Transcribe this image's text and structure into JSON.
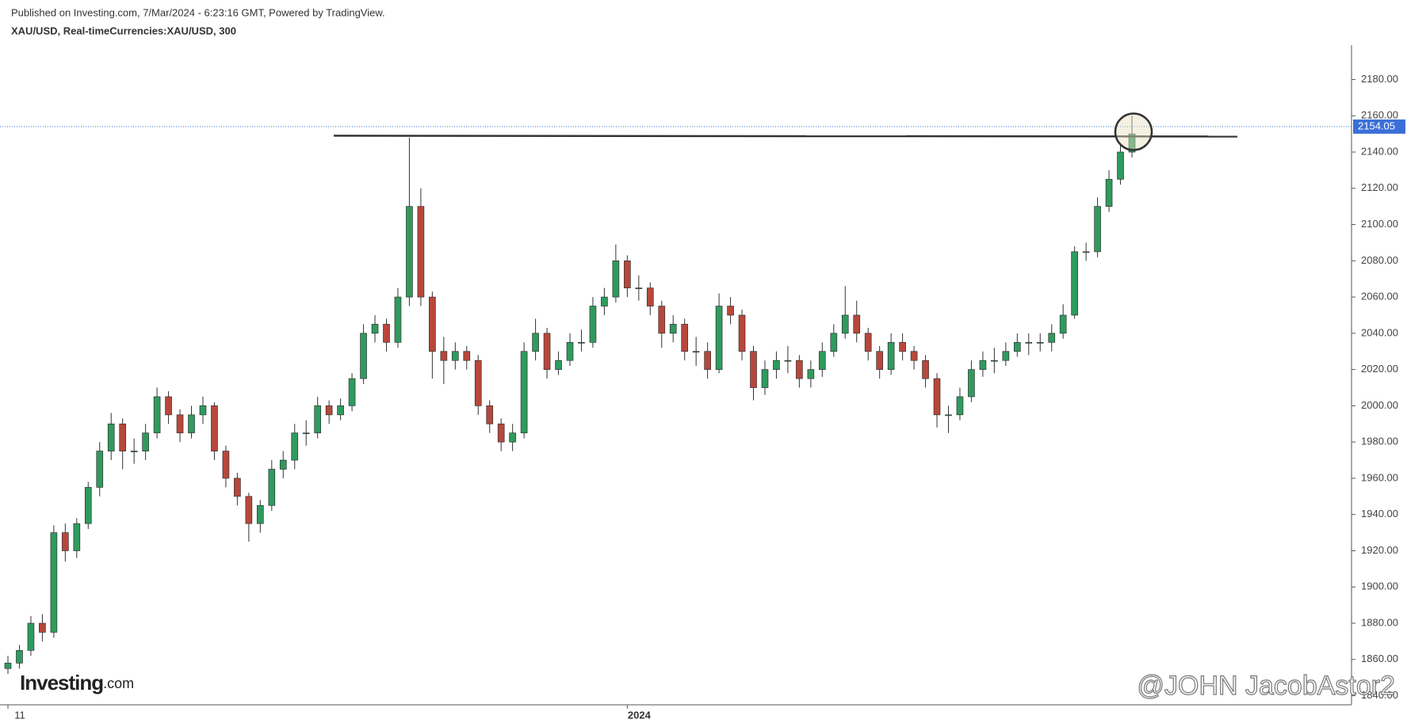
{
  "header": {
    "published": "Published on Investing.com, 7/Mar/2024 - 6:23:16 GMT, Powered by TradingView.",
    "symbol": "XAU/USD, Real-timeCurrencies:XAU/USD, 300"
  },
  "logo": {
    "brand": "Investing",
    "suffix": ".com"
  },
  "watermark": "@JOHN JacobAstor2",
  "chart_data": {
    "type": "candlestick",
    "up_color": "#2f9b5e",
    "down_color": "#b8473b",
    "open": [
      1855,
      1858,
      1865,
      1880,
      1875,
      1930,
      1920,
      1935,
      1955,
      1975,
      1990,
      1975,
      1975,
      1985,
      2005,
      1995,
      1985,
      1995,
      2000,
      1975,
      1960,
      1950,
      1935,
      1945,
      1965,
      1970,
      1985,
      1985,
      2000,
      1995,
      2000,
      2015,
      2040,
      2045,
      2035,
      2060,
      2110,
      2060,
      2030,
      2025,
      2030,
      2025,
      2000,
      1990,
      1980,
      1985,
      2030,
      2040,
      2020,
      2025,
      2035,
      2035,
      2055,
      2060,
      2080,
      2065,
      2065,
      2055,
      2040,
      2045,
      2030,
      2030,
      2020,
      2055,
      2050,
      2030,
      2010,
      2020,
      2025,
      2025,
      2015,
      2020,
      2030,
      2040,
      2050,
      2040,
      2030,
      2020,
      2035,
      2030,
      2025,
      2015,
      1995,
      1995,
      2005,
      2020,
      2025,
      2025,
      2030,
      2035,
      2035,
      2035,
      2040,
      2050,
      2085,
      2085,
      2110,
      2125,
      2140
    ],
    "high": [
      1862,
      1868,
      1884,
      1885,
      1934,
      1935,
      1938,
      1958,
      1980,
      1996,
      1993,
      1982,
      1990,
      2010,
      2008,
      1998,
      2000,
      2005,
      2002,
      1978,
      1963,
      1952,
      1948,
      1970,
      1975,
      1990,
      1992,
      2005,
      2003,
      2004,
      2018,
      2045,
      2050,
      2048,
      2065,
      2148,
      2120,
      2063,
      2038,
      2035,
      2033,
      2028,
      2003,
      1993,
      1990,
      2035,
      2048,
      2043,
      2030,
      2040,
      2042,
      2060,
      2065,
      2089,
      2083,
      2072,
      2068,
      2058,
      2050,
      2048,
      2038,
      2035,
      2062,
      2060,
      2053,
      2033,
      2025,
      2030,
      2033,
      2028,
      2025,
      2035,
      2045,
      2066,
      2058,
      2043,
      2033,
      2040,
      2040,
      2033,
      2028,
      2018,
      2000,
      2010,
      2025,
      2030,
      2032,
      2035,
      2040,
      2040,
      2040,
      2045,
      2056,
      2088,
      2090,
      2115,
      2130,
      2145,
      2160
    ],
    "low": [
      1852,
      1855,
      1862,
      1870,
      1872,
      1914,
      1916,
      1932,
      1950,
      1970,
      1965,
      1968,
      1970,
      1982,
      1990,
      1980,
      1982,
      1990,
      1970,
      1955,
      1945,
      1925,
      1930,
      1942,
      1960,
      1965,
      1978,
      1982,
      1990,
      1992,
      1997,
      2012,
      2035,
      2030,
      2032,
      2055,
      2055,
      2015,
      2012,
      2020,
      2020,
      1995,
      1985,
      1975,
      1975,
      1982,
      2025,
      2015,
      2017,
      2022,
      2030,
      2032,
      2050,
      2057,
      2060,
      2058,
      2050,
      2032,
      2035,
      2025,
      2022,
      2015,
      2018,
      2045,
      2025,
      2003,
      2006,
      2015,
      2018,
      2010,
      2010,
      2016,
      2027,
      2037,
      2035,
      2025,
      2015,
      2017,
      2025,
      2020,
      2010,
      1988,
      1985,
      1992,
      2002,
      2016,
      2018,
      2022,
      2027,
      2028,
      2030,
      2030,
      2037,
      2048,
      2080,
      2082,
      2107,
      2122,
      2137
    ],
    "close": [
      1858,
      1865,
      1880,
      1875,
      1930,
      1920,
      1935,
      1955,
      1975,
      1990,
      1975,
      1975,
      1985,
      2005,
      1995,
      1985,
      1995,
      2000,
      1975,
      1960,
      1950,
      1935,
      1945,
      1965,
      1970,
      1985,
      1985,
      2000,
      1995,
      2000,
      2015,
      2040,
      2045,
      2035,
      2060,
      2110,
      2060,
      2030,
      2025,
      2030,
      2025,
      2000,
      1990,
      1980,
      1985,
      2030,
      2040,
      2020,
      2025,
      2035,
      2035,
      2055,
      2060,
      2080,
      2065,
      2065,
      2055,
      2040,
      2045,
      2030,
      2030,
      2020,
      2055,
      2050,
      2030,
      2010,
      2020,
      2025,
      2025,
      2015,
      2020,
      2030,
      2040,
      2050,
      2040,
      2030,
      2020,
      2035,
      2030,
      2025,
      2015,
      1995,
      1995,
      2005,
      2020,
      2025,
      2025,
      2030,
      2035,
      2035,
      2035,
      2040,
      2050,
      2085,
      2085,
      2110,
      2125,
      2140,
      2150
    ],
    "xticks": [
      {
        "value": 0,
        "label": "11"
      },
      {
        "value": 54,
        "label": "2024"
      }
    ],
    "ylim": [
      1835,
      2199
    ],
    "yticks": [
      {
        "value": 1840,
        "label": "1840.00"
      },
      {
        "value": 1860,
        "label": "1860.00"
      },
      {
        "value": 1880,
        "label": "1880.00"
      },
      {
        "value": 1900,
        "label": "1900.00"
      },
      {
        "value": 1920,
        "label": "1920.00"
      },
      {
        "value": 1940,
        "label": "1940.00"
      },
      {
        "value": 1960,
        "label": "1960.00"
      },
      {
        "value": 1980,
        "label": "1980.00"
      },
      {
        "value": 2000,
        "label": "2000.00"
      },
      {
        "value": 2020,
        "label": "2020.00"
      },
      {
        "value": 2040,
        "label": "2040.00"
      },
      {
        "value": 2060,
        "label": "2060.00"
      },
      {
        "value": 2080,
        "label": "2080.00"
      },
      {
        "value": 2100,
        "label": "2100.00"
      },
      {
        "value": 2120,
        "label": "2120.00"
      },
      {
        "value": 2140,
        "label": "2140.00"
      },
      {
        "value": 2160,
        "label": "2160.00"
      },
      {
        "value": 2180,
        "label": "2180.00"
      }
    ],
    "last_price": 2154.05,
    "resistance_level": 2149
  }
}
